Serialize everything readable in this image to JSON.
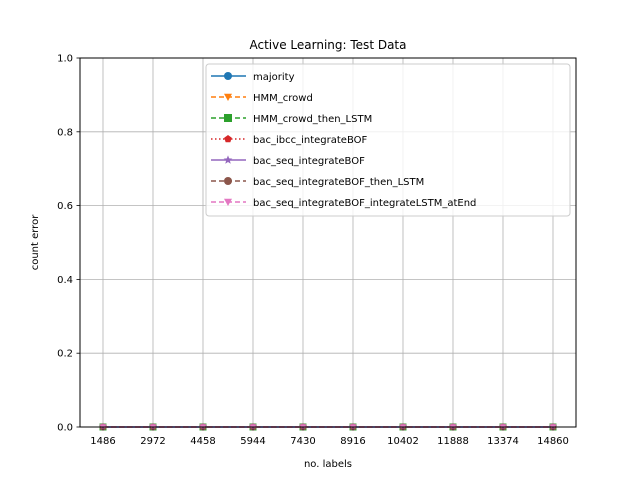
{
  "chart_data": {
    "type": "line",
    "title": "Active Learning: Test Data",
    "xlabel": "no. labels",
    "ylabel": "count error",
    "categories": [
      "1486",
      "2972",
      "4458",
      "5944",
      "7430",
      "8916",
      "10402",
      "11888",
      "13374",
      "14860"
    ],
    "ylim": [
      0,
      1.0
    ],
    "yticks": [
      "0.0",
      "0.2",
      "0.4",
      "0.6",
      "0.8",
      "1.0"
    ],
    "grid": true,
    "legend_position": "upper right",
    "series": [
      {
        "name": "majority",
        "values": [
          0,
          0,
          0,
          0,
          0,
          0,
          0,
          0,
          0,
          0
        ],
        "color": "#1f77b4",
        "dash": "",
        "marker": "circle"
      },
      {
        "name": "HMM_crowd",
        "values": [
          0,
          0,
          0,
          0,
          0,
          0,
          0,
          0,
          0,
          0
        ],
        "color": "#ff7f0e",
        "dash": "5,3",
        "marker": "triangle-down"
      },
      {
        "name": "HMM_crowd_then_LSTM",
        "values": [
          0,
          0,
          0,
          0,
          0,
          0,
          0,
          0,
          0,
          0
        ],
        "color": "#2ca02c",
        "dash": "5,3",
        "marker": "square"
      },
      {
        "name": "bac_ibcc_integrateBOF",
        "values": [
          0,
          0,
          0,
          0,
          0,
          0,
          0,
          0,
          0,
          0
        ],
        "color": "#d62728",
        "dash": "1.5,2.5",
        "marker": "pentagon"
      },
      {
        "name": "bac_seq_integrateBOF",
        "values": [
          0,
          0,
          0,
          0,
          0,
          0,
          0,
          0,
          0,
          0
        ],
        "color": "#9467bd",
        "dash": "",
        "marker": "star"
      },
      {
        "name": "bac_seq_integrateBOF_then_LSTM",
        "values": [
          0,
          0,
          0,
          0,
          0,
          0,
          0,
          0,
          0,
          0
        ],
        "color": "#8c564b",
        "dash": "5,3",
        "marker": "circle"
      },
      {
        "name": "bac_seq_integrateBOF_integrateLSTM_atEnd",
        "values": [
          0,
          0,
          0,
          0,
          0,
          0,
          0,
          0,
          0,
          0
        ],
        "color": "#e377c2",
        "dash": "5,3",
        "marker": "triangle-down"
      }
    ]
  }
}
